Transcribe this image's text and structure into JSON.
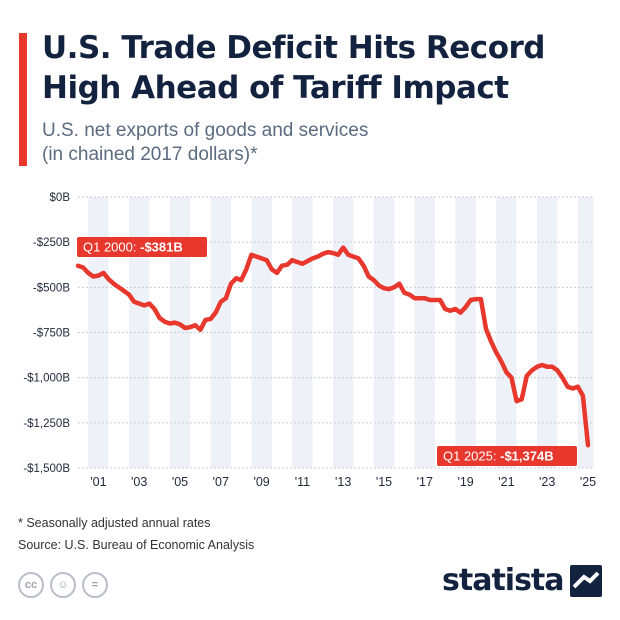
{
  "header": {
    "title": "U.S. Trade Deficit Hits Record High Ahead of Tariff Impact",
    "subtitle_line1": "U.S. net exports of goods and services",
    "subtitle_line2": "(in chained 2017 dollars)*"
  },
  "colors": {
    "accent": "#e8382d",
    "line": "#e8382d",
    "band": "#eef1f7",
    "title": "#13233f"
  },
  "chart_data": {
    "type": "line",
    "title": "",
    "xlabel": "",
    "ylabel": "",
    "ylim": [
      -1500,
      0
    ],
    "y_ticks": [
      0,
      -250,
      -500,
      -750,
      -1000,
      -1250,
      -1500
    ],
    "y_tick_labels": [
      "$0B",
      "-$250B",
      "-$500B",
      "-$750B",
      "-$1,000B",
      "-$1,250B",
      "-$1,500B"
    ],
    "x_ticks": [
      2001,
      2003,
      2005,
      2007,
      2009,
      2011,
      2013,
      2015,
      2017,
      2019,
      2021,
      2023,
      2025
    ],
    "x_tick_labels": [
      "'01",
      "'03",
      "'05",
      "'07",
      "'09",
      "'11",
      "'13",
      "'15",
      "'17",
      "'19",
      "'21",
      "'23",
      "'25"
    ],
    "grid": "alternating vertical year bands",
    "series": [
      {
        "name": "",
        "unit": "billions of chained 2017 dollars",
        "x": [
          2000.0,
          2000.25,
          2000.5,
          2000.75,
          2001.0,
          2001.25,
          2001.5,
          2001.75,
          2002.0,
          2002.25,
          2002.5,
          2002.75,
          2003.0,
          2003.25,
          2003.5,
          2003.75,
          2004.0,
          2004.25,
          2004.5,
          2004.75,
          2005.0,
          2005.25,
          2005.5,
          2005.75,
          2006.0,
          2006.25,
          2006.5,
          2006.75,
          2007.0,
          2007.25,
          2007.5,
          2007.75,
          2008.0,
          2008.25,
          2008.5,
          2008.75,
          2009.0,
          2009.25,
          2009.5,
          2009.75,
          2010.0,
          2010.25,
          2010.5,
          2010.75,
          2011.0,
          2011.25,
          2011.5,
          2011.75,
          2012.0,
          2012.25,
          2012.5,
          2012.75,
          2013.0,
          2013.25,
          2013.5,
          2013.75,
          2014.0,
          2014.25,
          2014.5,
          2014.75,
          2015.0,
          2015.25,
          2015.5,
          2015.75,
          2016.0,
          2016.25,
          2016.5,
          2016.75,
          2017.0,
          2017.25,
          2017.5,
          2017.75,
          2018.0,
          2018.25,
          2018.5,
          2018.75,
          2019.0,
          2019.25,
          2019.5,
          2019.75,
          2020.0,
          2020.25,
          2020.5,
          2020.75,
          2021.0,
          2021.25,
          2021.5,
          2021.75,
          2022.0,
          2022.25,
          2022.5,
          2022.75,
          2023.0,
          2023.25,
          2023.5,
          2023.75,
          2024.0,
          2024.25,
          2024.5,
          2024.75,
          2025.0
        ],
        "values": [
          -381,
          -390,
          -420,
          -440,
          -435,
          -420,
          -455,
          -480,
          -500,
          -520,
          -540,
          -580,
          -590,
          -600,
          -590,
          -620,
          -670,
          -690,
          -700,
          -695,
          -705,
          -725,
          -720,
          -710,
          -735,
          -680,
          -675,
          -640,
          -580,
          -560,
          -480,
          -450,
          -460,
          -400,
          -320,
          -330,
          -340,
          -350,
          -400,
          -420,
          -380,
          -375,
          -350,
          -360,
          -370,
          -355,
          -340,
          -330,
          -315,
          -305,
          -310,
          -320,
          -280,
          -320,
          -330,
          -340,
          -380,
          -440,
          -460,
          -490,
          -505,
          -510,
          -500,
          -480,
          -530,
          -540,
          -560,
          -560,
          -560,
          -570,
          -570,
          -570,
          -620,
          -630,
          -620,
          -640,
          -610,
          -570,
          -565,
          -565,
          -730,
          -800,
          -860,
          -910,
          -970,
          -1000,
          -1130,
          -1120,
          -990,
          -960,
          -940,
          -930,
          -940,
          -940,
          -960,
          -1000,
          -1050,
          -1060,
          -1050,
          -1100,
          -1374
        ]
      }
    ],
    "annotations": [
      {
        "prefix": "Q1 2000: ",
        "value_text": "-$381B",
        "x": 2000.0,
        "y": -381
      },
      {
        "prefix": "Q1 2025: ",
        "value_text": "-$1,374B",
        "x": 2025.0,
        "y": -1374
      }
    ]
  },
  "footer": {
    "footnote": "* Seasonally adjusted annual rates",
    "source": "Source: U.S. Bureau of Economic Analysis",
    "logo_text": "statista",
    "license_icons": [
      "cc-icon",
      "attribution-icon",
      "no-derivatives-icon"
    ]
  }
}
